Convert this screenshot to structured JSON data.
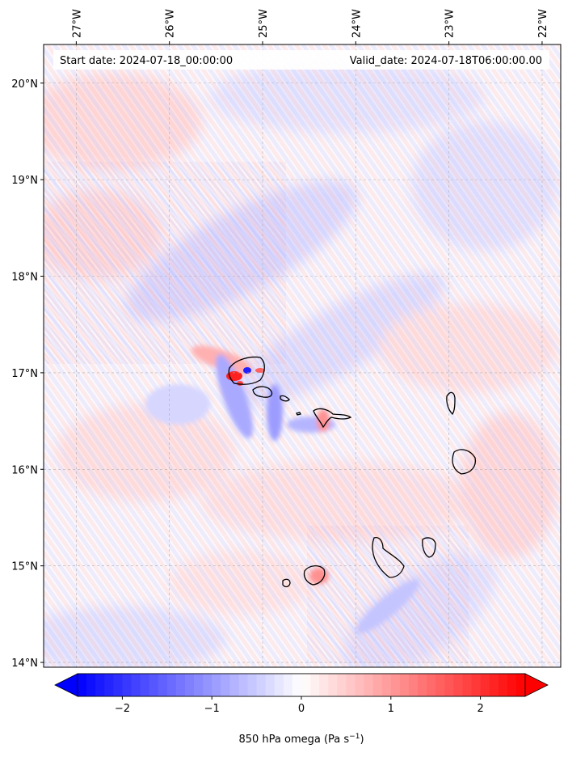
{
  "header": {
    "start_label": "Start date: 2024-07-18_00:00:00",
    "valid_label": "Valid_date: 2024-07-18T06:00:00.00"
  },
  "map": {
    "lon_ticks": [
      "27°W",
      "26°W",
      "25°W",
      "24°W",
      "23°W",
      "22°W"
    ],
    "lon_values": [
      -27,
      -26,
      -25,
      -24,
      -23,
      -22
    ],
    "lat_ticks": [
      "20°N",
      "19°N",
      "18°N",
      "17°N",
      "16°N",
      "15°N",
      "14°N"
    ],
    "lat_values": [
      20,
      19,
      18,
      17,
      16,
      15,
      14
    ],
    "lon_range": [
      -27.35,
      -21.8
    ],
    "lat_range": [
      13.95,
      20.4
    ],
    "gridlines": true,
    "colors": {
      "coastline": "#000000",
      "grid": "#b0b0b0",
      "positive": "#ff0000",
      "negative": "#0000ff"
    }
  },
  "colorbar": {
    "label_prefix": "850 hPa omega (Pa s",
    "label_exp": "−1",
    "label_suffix": ")",
    "ticks": [
      "−2",
      "−1",
      "0",
      "1",
      "2"
    ],
    "tick_values": [
      -2,
      -1,
      0,
      1,
      2
    ],
    "range": [
      -2.5,
      2.5
    ],
    "extend": "both",
    "cmap": "bwr"
  }
}
